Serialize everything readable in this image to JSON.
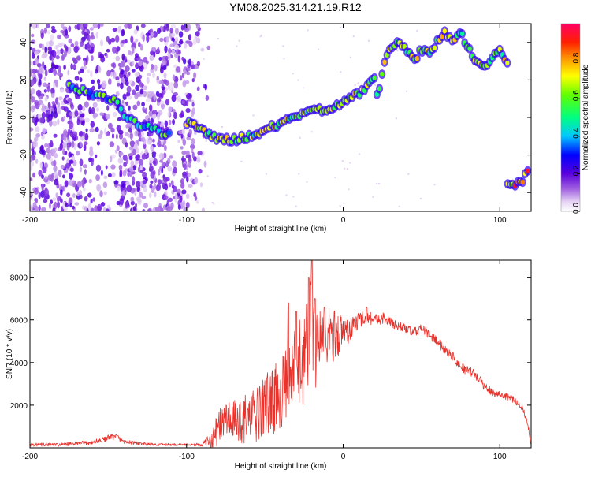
{
  "title": "YM08.2025.314.21.19.R12",
  "colors": {
    "line": "#e8332d",
    "frame": "#000000",
    "background": "#ffffff"
  },
  "chart_data": [
    {
      "type": "heatmap",
      "xlabel": "Height of straight line (km)",
      "ylabel": "Frequency (Hz)",
      "xlim": [
        -200,
        120
      ],
      "ylim": [
        -50,
        50
      ],
      "xticks": [
        -200,
        -100,
        0,
        100
      ],
      "yticks": [
        -40,
        -20,
        0,
        20,
        40
      ],
      "ridge_x": [
        -175,
        -165,
        -155,
        -145,
        -140,
        -130,
        -110,
        -100,
        -95,
        -90,
        -85,
        -80,
        -75,
        -70,
        -65,
        -60,
        -55,
        -50,
        -45,
        -40,
        -35,
        -30,
        -25,
        -20,
        -15,
        -10,
        -5,
        0,
        5,
        10,
        15,
        20,
        22,
        25,
        30,
        35,
        40,
        45,
        50,
        55,
        60,
        65,
        70,
        75,
        80,
        85,
        90,
        95,
        100,
        105
      ],
      "ridge_y": [
        17,
        14,
        11,
        9,
        2,
        -4,
        -10,
        -3,
        -4,
        -7,
        -9,
        -11,
        -12,
        -12,
        -11,
        -10,
        -9,
        -7,
        -5,
        -3,
        0,
        1,
        1,
        3,
        4,
        5,
        6,
        8,
        10,
        13,
        16,
        20,
        10,
        25,
        38,
        40,
        37,
        30,
        36,
        34,
        40,
        46,
        40,
        45,
        37,
        30,
        26,
        32,
        35,
        30
      ],
      "ridge_end_x": [
        105,
        110,
        115,
        118
      ],
      "ridge_end_y": [
        -35,
        -35,
        -33,
        -28
      ],
      "colorbar": {
        "label": "Normalized spectral amplitude",
        "ticks": [
          0.0,
          0.2,
          0.4,
          0.6,
          0.8
        ],
        "tick_labels": [
          "0.0",
          "0.2",
          "0.4",
          "0.6",
          "0.8"
        ],
        "range": [
          0,
          1
        ]
      }
    },
    {
      "type": "line",
      "xlabel": "Height of straight line (km)",
      "ylabel": "SNR (10 * v/v)",
      "xlim": [
        -200,
        120
      ],
      "ylim": [
        0,
        8800
      ],
      "xticks": [
        -200,
        -100,
        0,
        100
      ],
      "yticks": [
        2000,
        4000,
        6000,
        8000
      ],
      "series": [
        {
          "name": "SNR",
          "x": [
            -200,
            -180,
            -160,
            -150,
            -145,
            -140,
            -130,
            -120,
            -110,
            -100,
            -90,
            -85,
            -80,
            -75,
            -70,
            -65,
            -60,
            -55,
            -50,
            -45,
            -40,
            -35,
            -30,
            -25,
            -22,
            -20,
            -18,
            -15,
            -10,
            -5,
            0,
            5,
            10,
            15,
            20,
            25,
            30,
            35,
            40,
            45,
            50,
            55,
            60,
            65,
            70,
            75,
            80,
            85,
            90,
            95,
            100,
            105,
            110,
            115,
            118,
            120
          ],
          "y": [
            150,
            150,
            250,
            450,
            550,
            300,
            200,
            150,
            150,
            150,
            150,
            300,
            900,
            1400,
            1200,
            1300,
            1400,
            1500,
            2000,
            2200,
            2600,
            3000,
            3800,
            4200,
            5000,
            6000,
            4800,
            5200,
            5300,
            5300,
            5400,
            5600,
            6000,
            6200,
            6000,
            6100,
            5900,
            5700,
            5600,
            5400,
            5600,
            5300,
            5000,
            4600,
            4300,
            3800,
            3600,
            3400,
            2900,
            2600,
            2500,
            2400,
            2200,
            1800,
            1100,
            100
          ],
          "peaks_x": [
            -20,
            -22,
            -18,
            -35,
            -30,
            -12,
            15
          ],
          "peaks_y": [
            8800,
            8000,
            7000,
            6800,
            6400,
            6600,
            6600
          ],
          "noise_amplitude": [
            80,
            80,
            120,
            150,
            150,
            100,
            80,
            60,
            60,
            60,
            80,
            400,
            800,
            900,
            1000,
            1100,
            1200,
            1300,
            1500,
            1600,
            1700,
            1800,
            2000,
            2200,
            2400,
            2500,
            2300,
            2000,
            1500,
            1200,
            900,
            600,
            400,
            350,
            300,
            280,
            250,
            230,
            220,
            220,
            220,
            230,
            230,
            220,
            220,
            220,
            220,
            220,
            220,
            200,
            180,
            160,
            150,
            150,
            150,
            60
          ]
        }
      ]
    }
  ]
}
